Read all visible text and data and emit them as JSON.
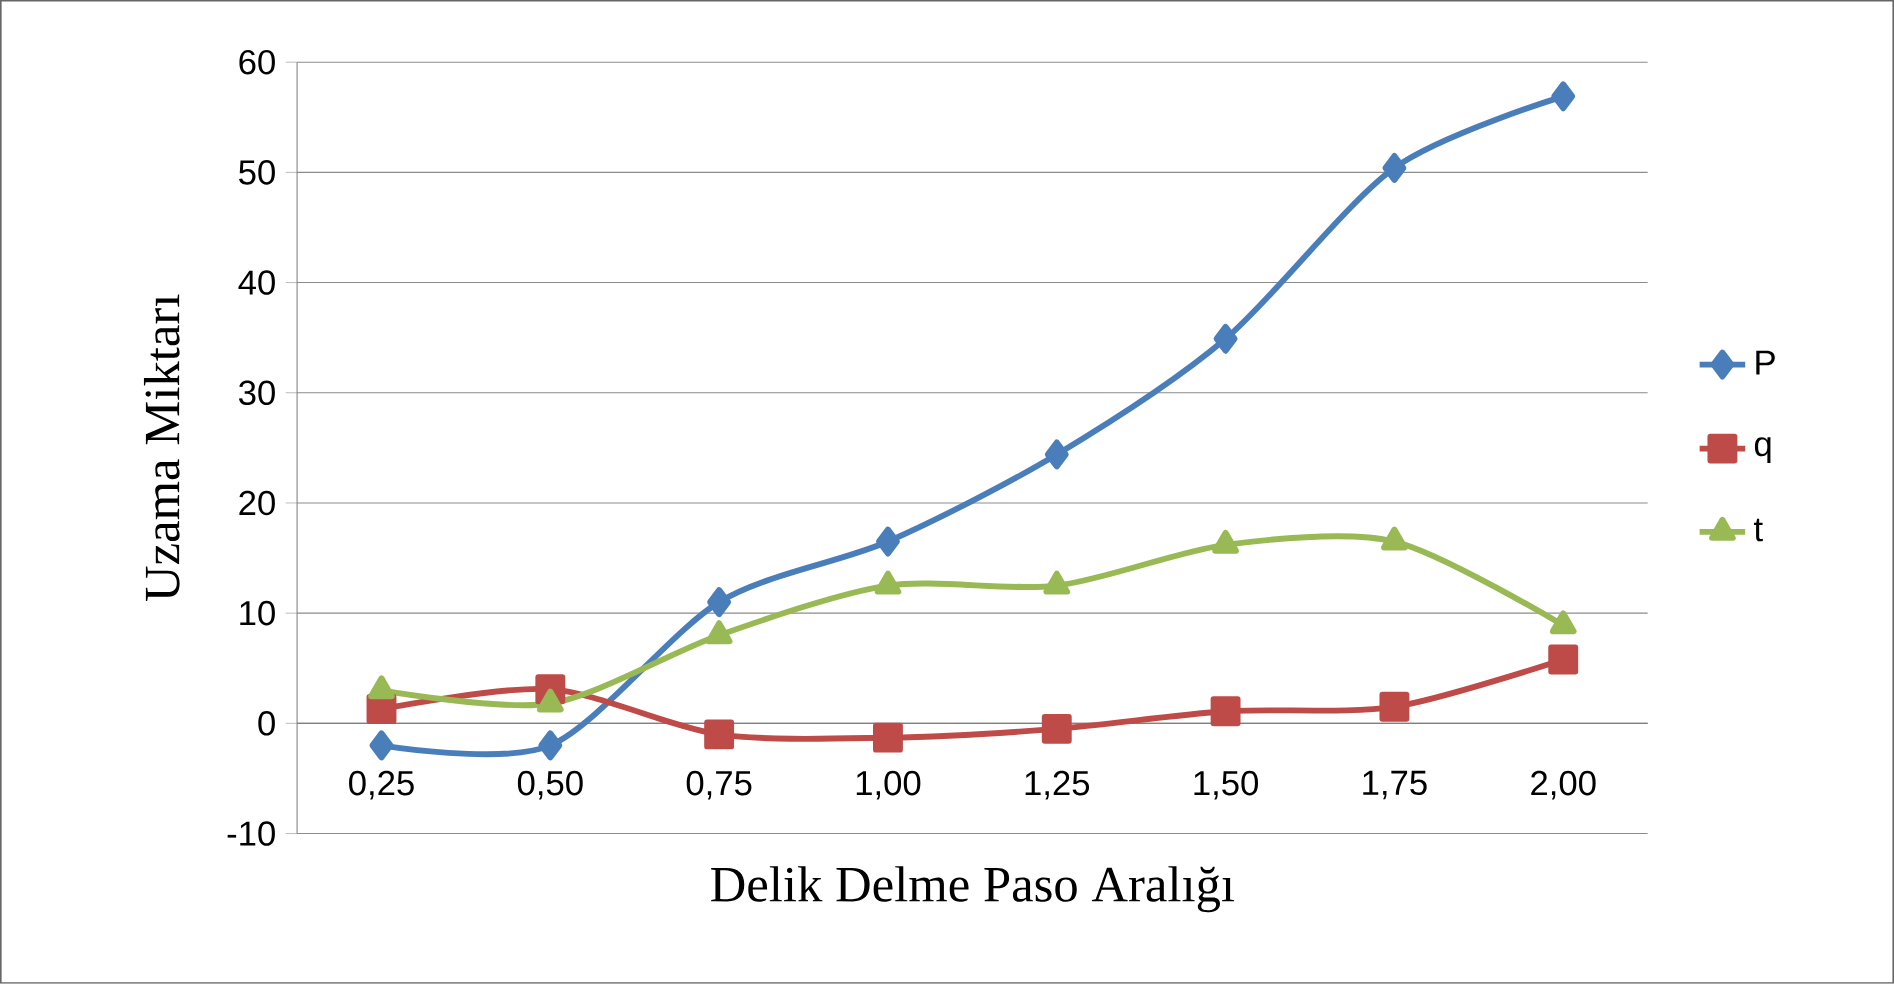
{
  "chart_data": {
    "type": "line",
    "xlabel": "Delik Delme Paso Aralığı",
    "ylabel": "Uzama Miktarı",
    "categories": [
      "0,25",
      "0,50",
      "0,75",
      "1,00",
      "1,25",
      "1,50",
      "1,75",
      "2,00"
    ],
    "series": [
      {
        "name": "P",
        "color": "#4a7ebb",
        "marker": "diamond",
        "values": [
          -2,
          -2,
          11,
          16.5,
          24.4,
          34.9,
          50.4,
          56.9
        ]
      },
      {
        "name": "q",
        "color": "#be4b48",
        "marker": "square",
        "values": [
          1.3,
          3.1,
          -1,
          -1.3,
          -0.5,
          1.1,
          1.5,
          5.8
        ]
      },
      {
        "name": "t",
        "color": "#98b954",
        "marker": "triangle",
        "values": [
          3,
          1.8,
          8,
          12.5,
          12.5,
          16.2,
          16.5,
          8.9
        ]
      }
    ],
    "ylim": [
      -10,
      60
    ],
    "yticks": [
      -10,
      0,
      10,
      20,
      30,
      40,
      50,
      60
    ],
    "grid": "y",
    "legend": "right"
  }
}
